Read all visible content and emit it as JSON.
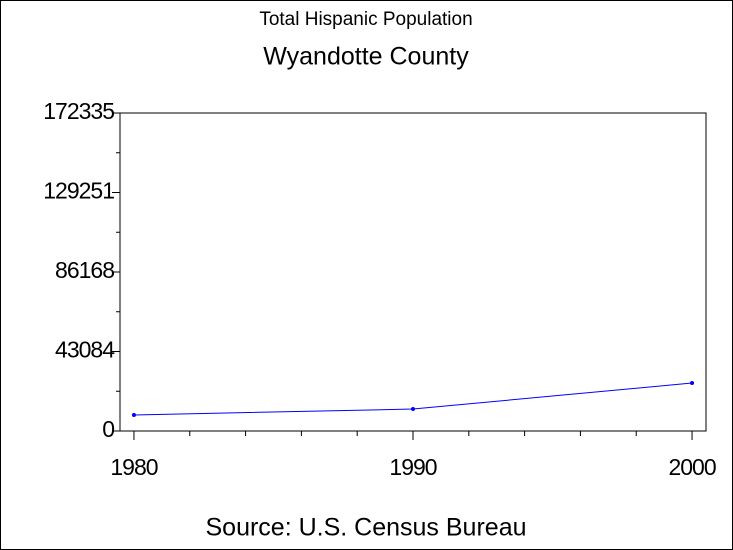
{
  "chart_data": {
    "type": "line",
    "title": "Total Hispanic Population",
    "subtitle": "Wyandotte County",
    "caption": "Source: U.S. Census Bureau",
    "x": [
      1980,
      1990,
      2000
    ],
    "series": [
      {
        "color": "#0000ff",
        "values": [
          8700,
          11900,
          26000
        ]
      }
    ],
    "xlim": [
      1979.5,
      2000.5
    ],
    "xticks": [
      1980,
      1990,
      2000
    ],
    "ylim": [
      0,
      172335
    ],
    "yticks": [
      0,
      43084,
      86168,
      129251,
      172335
    ]
  }
}
